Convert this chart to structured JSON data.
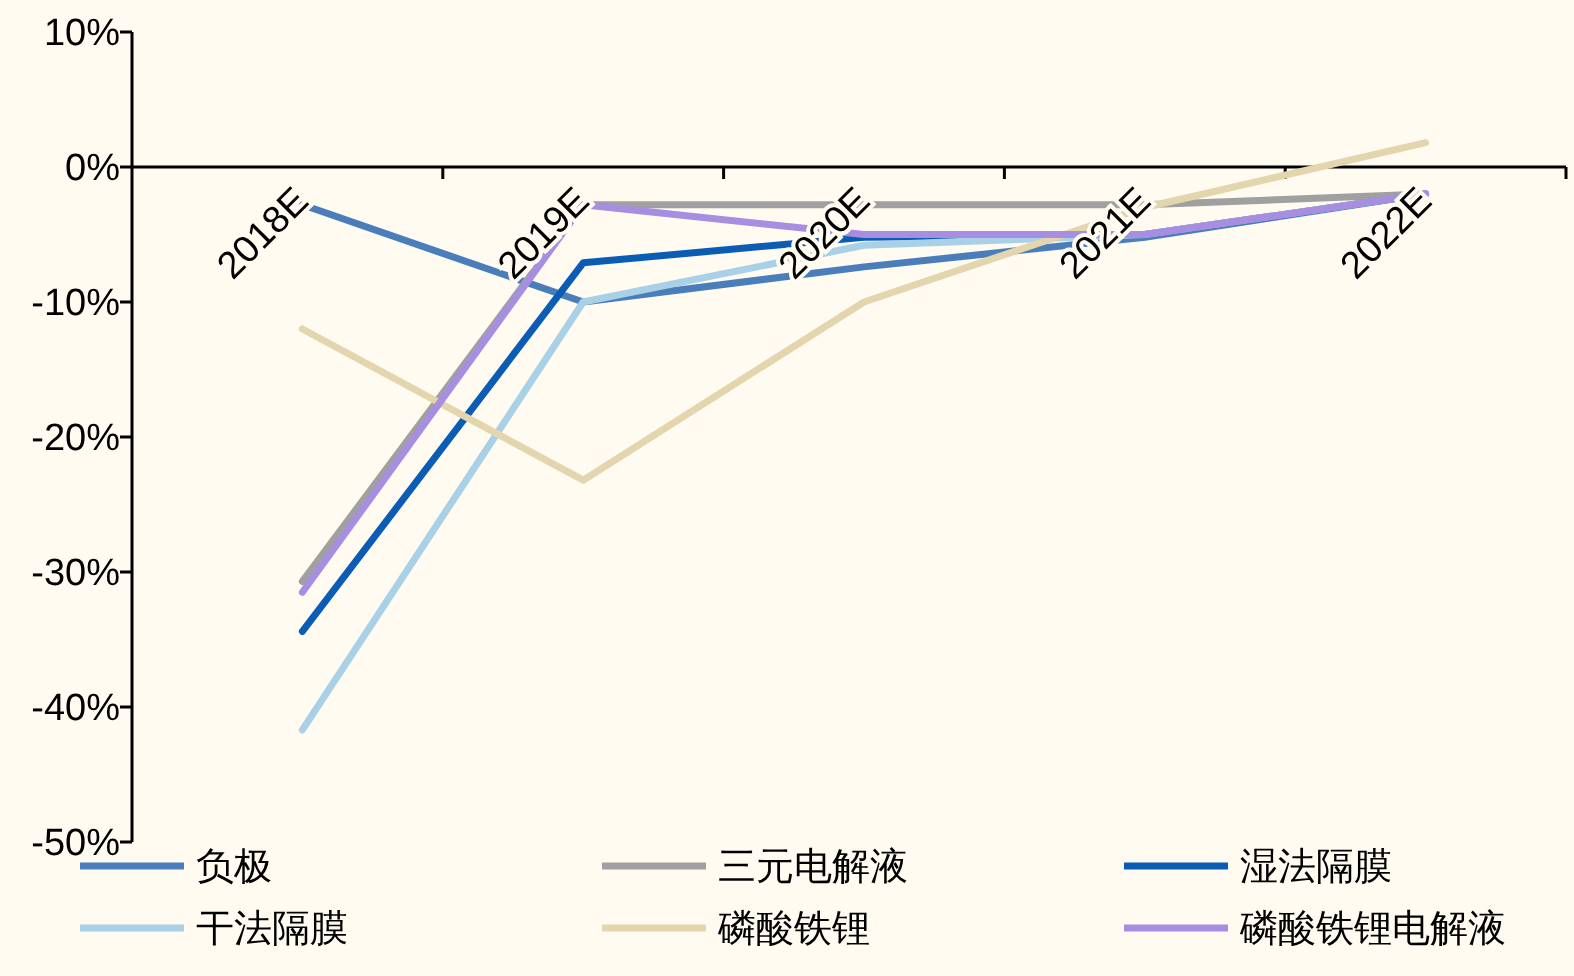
{
  "chart_data": {
    "type": "line",
    "categories": [
      "2018E",
      "2019E",
      "2020E",
      "2021E",
      "2022E"
    ],
    "series": [
      {
        "name": "负极",
        "color": "#4a7ebb",
        "values": [
          -2.8,
          -10,
          -7.4,
          -5.2,
          -2
        ]
      },
      {
        "name": "三元电解液",
        "color": "#a0a0a0",
        "values": [
          -30.7,
          -2.8,
          -2.8,
          -2.8,
          -2
        ]
      },
      {
        "name": "湿法隔膜",
        "color": "#0b5cb5",
        "values": [
          -34.4,
          -7.1,
          -5.2,
          -5,
          -2
        ]
      },
      {
        "name": "干法隔膜",
        "color": "#a8d0e6",
        "values": [
          -41.7,
          -10,
          -5.8,
          -5,
          -2
        ]
      },
      {
        "name": "磷酸铁锂",
        "color": "#e3d5ae",
        "values": [
          -12,
          -23.2,
          -10,
          -3,
          1.8
        ]
      },
      {
        "name": "磷酸铁锂电解液",
        "color": "#a88ee0",
        "values": [
          -31.5,
          -2.8,
          -5,
          -5,
          -2
        ]
      }
    ],
    "ylim": [
      -50,
      10
    ],
    "yticks": [
      {
        "value": 10,
        "label": "10%"
      },
      {
        "value": 0,
        "label": "0%"
      },
      {
        "value": -10,
        "label": "-10%"
      },
      {
        "value": -20,
        "label": "-20%"
      },
      {
        "value": -30,
        "label": "-30%"
      },
      {
        "value": -40,
        "label": "-40%"
      },
      {
        "value": -50,
        "label": "-50%"
      }
    ],
    "grid": false,
    "legend": "bottom",
    "line_style": "solid",
    "marker": "none"
  }
}
